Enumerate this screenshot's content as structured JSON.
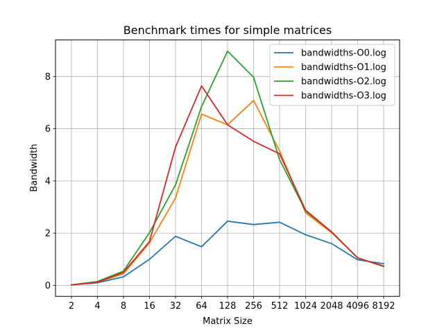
{
  "chart_data": {
    "type": "line",
    "title": "Benchmark times for simple matrices",
    "xlabel": "Matrix Size",
    "ylabel": "Bandwidth",
    "categories": [
      "2",
      "4",
      "8",
      "16",
      "32",
      "64",
      "128",
      "256",
      "512",
      "1024",
      "2048",
      "4096",
      "8192"
    ],
    "yticks": [
      "0",
      "2",
      "4",
      "6",
      "8"
    ],
    "ylim": [
      -0.42,
      9.4
    ],
    "grid": true,
    "legend_position": "top-right",
    "series": [
      {
        "name": "bandwidths-O0.log",
        "color": "#1f77b4",
        "values": [
          0.02,
          0.1,
          0.33,
          1.0,
          1.88,
          1.48,
          2.46,
          2.33,
          2.42,
          1.94,
          1.6,
          0.98,
          0.83
        ]
      },
      {
        "name": "bandwidths-O1.log",
        "color": "#ff7f0e",
        "values": [
          0.02,
          0.12,
          0.45,
          1.63,
          3.35,
          6.56,
          6.15,
          7.08,
          5.15,
          2.78,
          2.02,
          1.06,
          0.72
        ]
      },
      {
        "name": "bandwidths-O2.log",
        "color": "#2ca02c",
        "values": [
          0.02,
          0.15,
          0.55,
          2.02,
          3.85,
          6.85,
          8.97,
          7.97,
          4.82,
          2.85,
          2.05,
          1.05,
          0.73
        ]
      },
      {
        "name": "bandwidths-O3.log",
        "color": "#d62728",
        "values": [
          0.02,
          0.12,
          0.5,
          1.68,
          5.3,
          7.64,
          6.15,
          5.52,
          5.04,
          2.88,
          2.05,
          1.05,
          0.74
        ]
      }
    ]
  }
}
